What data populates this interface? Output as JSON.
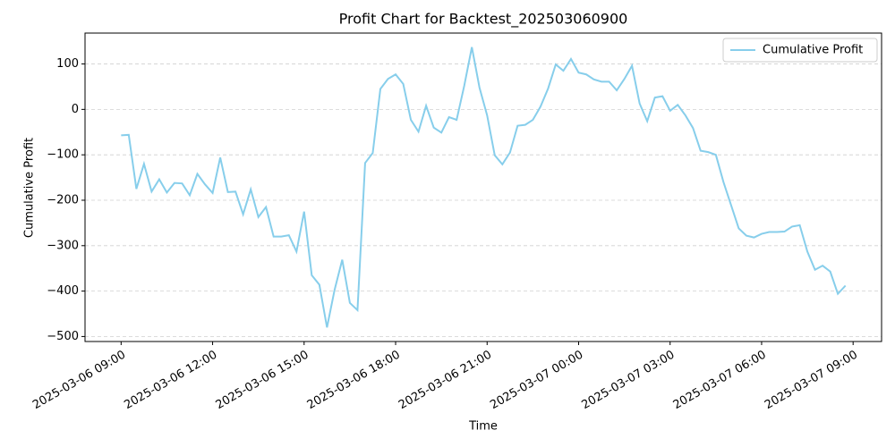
{
  "chart_data": {
    "type": "line",
    "title": "Profit Chart for Backtest_202503060900",
    "x_label": "Time",
    "y_label": "Cumulative Profit",
    "x": [
      "2025-03-06 09:00",
      "2025-03-06 09:15",
      "2025-03-06 09:30",
      "2025-03-06 09:45",
      "2025-03-06 10:00",
      "2025-03-06 10:15",
      "2025-03-06 10:30",
      "2025-03-06 10:45",
      "2025-03-06 11:00",
      "2025-03-06 11:15",
      "2025-03-06 11:30",
      "2025-03-06 11:45",
      "2025-03-06 12:00",
      "2025-03-06 12:15",
      "2025-03-06 12:30",
      "2025-03-06 12:45",
      "2025-03-06 13:00",
      "2025-03-06 13:15",
      "2025-03-06 13:30",
      "2025-03-06 13:45",
      "2025-03-06 14:00",
      "2025-03-06 14:15",
      "2025-03-06 14:30",
      "2025-03-06 14:45",
      "2025-03-06 15:00",
      "2025-03-06 15:15",
      "2025-03-06 15:30",
      "2025-03-06 15:45",
      "2025-03-06 16:00",
      "2025-03-06 16:15",
      "2025-03-06 16:30",
      "2025-03-06 16:45",
      "2025-03-06 17:00",
      "2025-03-06 17:15",
      "2025-03-06 17:30",
      "2025-03-06 17:45",
      "2025-03-06 18:00",
      "2025-03-06 18:15",
      "2025-03-06 18:30",
      "2025-03-06 18:45",
      "2025-03-06 19:00",
      "2025-03-06 19:15",
      "2025-03-06 19:30",
      "2025-03-06 19:45",
      "2025-03-06 20:00",
      "2025-03-06 20:15",
      "2025-03-06 20:30",
      "2025-03-06 20:45",
      "2025-03-06 21:00",
      "2025-03-06 21:15",
      "2025-03-06 21:30",
      "2025-03-06 21:45",
      "2025-03-06 22:00",
      "2025-03-06 22:15",
      "2025-03-06 22:30",
      "2025-03-06 22:45",
      "2025-03-06 23:00",
      "2025-03-06 23:15",
      "2025-03-06 23:30",
      "2025-03-06 23:45",
      "2025-03-07 00:00",
      "2025-03-07 00:15",
      "2025-03-07 00:30",
      "2025-03-07 00:45",
      "2025-03-07 01:00",
      "2025-03-07 01:15",
      "2025-03-07 01:30",
      "2025-03-07 01:45",
      "2025-03-07 02:00",
      "2025-03-07 02:15",
      "2025-03-07 02:30",
      "2025-03-07 02:45",
      "2025-03-07 03:00",
      "2025-03-07 03:15",
      "2025-03-07 03:30",
      "2025-03-07 03:45",
      "2025-03-07 04:00",
      "2025-03-07 04:15",
      "2025-03-07 04:30",
      "2025-03-07 04:45",
      "2025-03-07 05:00",
      "2025-03-07 05:15",
      "2025-03-07 05:30",
      "2025-03-07 05:45",
      "2025-03-07 06:00",
      "2025-03-07 06:15",
      "2025-03-07 06:30",
      "2025-03-07 06:45",
      "2025-03-07 07:00",
      "2025-03-07 07:15",
      "2025-03-07 07:30",
      "2025-03-07 07:45",
      "2025-03-07 08:00",
      "2025-03-07 08:15",
      "2025-03-07 08:30",
      "2025-03-07 08:45"
    ],
    "series": [
      {
        "name": "Cumulative Profit",
        "color": "#87ceeb",
        "values": [
          -57,
          -56,
          -175,
          -120,
          -181,
          -154,
          -183,
          -162,
          -163,
          -189,
          -142,
          -165,
          -184,
          -106,
          -182,
          -181,
          -231,
          -176,
          -237,
          -215,
          -280,
          -280,
          -277,
          -313,
          -225,
          -365,
          -386,
          -480,
          -397,
          -331,
          -426,
          -442,
          -118,
          -96,
          45,
          67,
          77,
          56,
          -23,
          -49,
          8,
          -40,
          -51,
          -17,
          -23,
          52,
          137,
          48,
          -13,
          -101,
          -121,
          -95,
          -36,
          -34,
          -23,
          6,
          46,
          99,
          85,
          111,
          81,
          77,
          66,
          61,
          61,
          42,
          67,
          96,
          13,
          -26,
          26,
          29,
          -3,
          10,
          -13,
          -41,
          -91,
          -94,
          -100,
          -160,
          -211,
          -262,
          -278,
          -282,
          -274,
          -270,
          -270,
          -269,
          -258,
          -255,
          -313,
          -353,
          -344,
          -357,
          -406,
          -388
        ]
      }
    ],
    "xlim": [
      "2025-03-06 07:49",
      "2025-03-07 09:56"
    ],
    "xticks": [
      "2025-03-06 09:00",
      "2025-03-06 12:00",
      "2025-03-06 15:00",
      "2025-03-06 18:00",
      "2025-03-06 21:00",
      "2025-03-07 00:00",
      "2025-03-07 03:00",
      "2025-03-07 06:00",
      "2025-03-07 09:00"
    ],
    "ylim": [
      -511,
      168
    ],
    "yticks": [
      {
        "value": -500,
        "label": "−500"
      },
      {
        "value": -400,
        "label": "−400"
      },
      {
        "value": -300,
        "label": "−300"
      },
      {
        "value": -200,
        "label": "−200"
      },
      {
        "value": -100,
        "label": "−100"
      },
      0,
      100
    ],
    "grid": "y",
    "legend": "upper right"
  }
}
